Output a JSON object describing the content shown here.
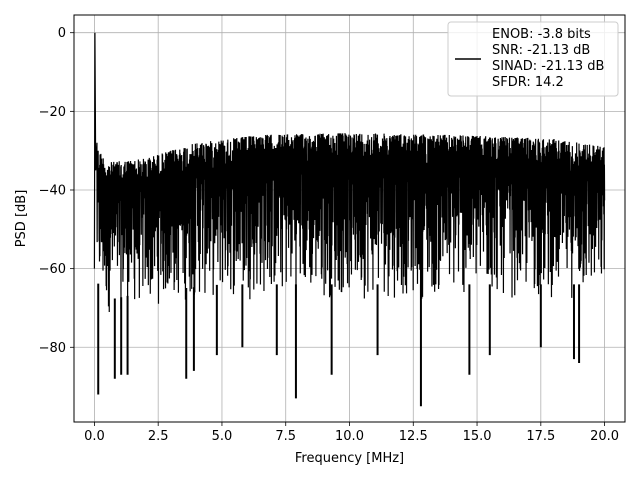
{
  "chart_data": {
    "type": "line",
    "xlabel": "Frequency [MHz]",
    "ylabel": "PSD [dB]",
    "xlim": [
      -0.8,
      20.8
    ],
    "ylim": [
      -99,
      4.5
    ],
    "x_ticks": [
      0.0,
      2.5,
      5.0,
      7.5,
      10.0,
      12.5,
      15.0,
      17.5,
      20.0
    ],
    "x_tick_labels": [
      "0.0",
      "2.5",
      "5.0",
      "7.5",
      "10.0",
      "12.5",
      "15.0",
      "17.5",
      "20.0"
    ],
    "y_ticks": [
      0,
      -20,
      -40,
      -60,
      -80
    ],
    "y_tick_labels": [
      "0",
      "−20",
      "−40",
      "−60",
      "−80"
    ],
    "grid": true,
    "legend_position": "top-right",
    "legend_lines": [
      "ENOB: -3.8 bits",
      "SNR: -21.13 dB",
      "SINAD: -21.13 dB",
      "SFDR: 14.2"
    ],
    "series": [
      {
        "color": "#000000",
        "envelope_top": [
          [
            0.0,
            -28
          ],
          [
            0.5,
            -33
          ],
          [
            2.0,
            -32
          ],
          [
            4.0,
            -28
          ],
          [
            6.5,
            -26
          ],
          [
            10.0,
            -25.5
          ],
          [
            14.0,
            -26
          ],
          [
            18.0,
            -27
          ],
          [
            20.0,
            -29
          ]
        ],
        "envelope_floor": [
          [
            0.0,
            -66
          ],
          [
            0.5,
            -72
          ],
          [
            2.0,
            -70
          ],
          [
            5.0,
            -68
          ],
          [
            10.0,
            -68
          ],
          [
            15.0,
            -68
          ],
          [
            20.0,
            -68
          ]
        ],
        "peak": [
          [
            0.0,
            -60
          ],
          [
            0.02,
            0
          ],
          [
            0.05,
            -35
          ],
          [
            0.1,
            -28
          ]
        ],
        "deep_spikes": [
          [
            0.15,
            -92
          ],
          [
            0.8,
            -88
          ],
          [
            1.05,
            -87
          ],
          [
            1.3,
            -87
          ],
          [
            3.6,
            -88
          ],
          [
            3.9,
            -86
          ],
          [
            4.8,
            -82
          ],
          [
            5.8,
            -80
          ],
          [
            7.15,
            -82
          ],
          [
            7.9,
            -93
          ],
          [
            9.3,
            -87
          ],
          [
            11.1,
            -82
          ],
          [
            12.8,
            -95
          ],
          [
            14.7,
            -87
          ],
          [
            15.5,
            -82
          ],
          [
            17.5,
            -80
          ],
          [
            18.8,
            -83
          ],
          [
            19.0,
            -84
          ]
        ]
      }
    ]
  }
}
